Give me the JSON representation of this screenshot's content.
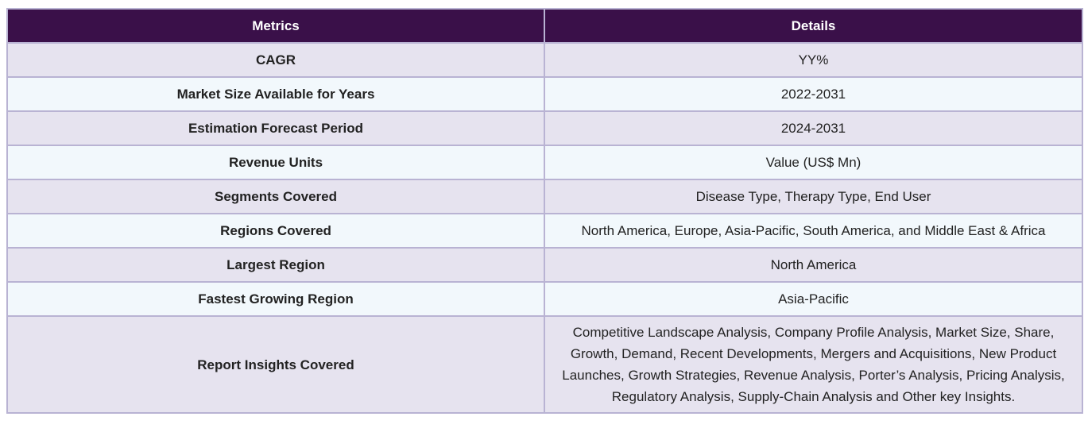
{
  "table": {
    "headers": {
      "metric": "Metrics",
      "details": "Details"
    },
    "rows": [
      {
        "metric": "CAGR",
        "details": "YY%"
      },
      {
        "metric": "Market Size Available for Years",
        "details": "2022-2031"
      },
      {
        "metric": "Estimation Forecast Period",
        "details": "2024-2031"
      },
      {
        "metric": "Revenue Units",
        "details": "Value (US$ Mn)"
      },
      {
        "metric": "Segments Covered",
        "details": "Disease Type, Therapy Type, End User"
      },
      {
        "metric": "Regions Covered",
        "details": "North America, Europe, Asia-Pacific, South America, and Middle East & Africa"
      },
      {
        "metric": "Largest Region",
        "details": "North America"
      },
      {
        "metric": "Fastest Growing Region",
        "details": "Asia-Pacific"
      },
      {
        "metric": "Report Insights Covered",
        "details": "Competitive Landscape Analysis, Company Profile Analysis, Market Size, Share, Growth, Demand, Recent Developments, Mergers and Acquisitions, New Product Launches, Growth Strategies, Revenue Analysis, Porter’s Analysis, Pricing Analysis, Regulatory Analysis, Supply-Chain Analysis and Other key Insights."
      }
    ]
  },
  "colors": {
    "header_bg": "#3a1049",
    "header_text": "#ffffff",
    "row_odd_bg": "#e6e3ef",
    "row_even_bg": "#f2f8fc",
    "border": "#b9b3d3"
  }
}
